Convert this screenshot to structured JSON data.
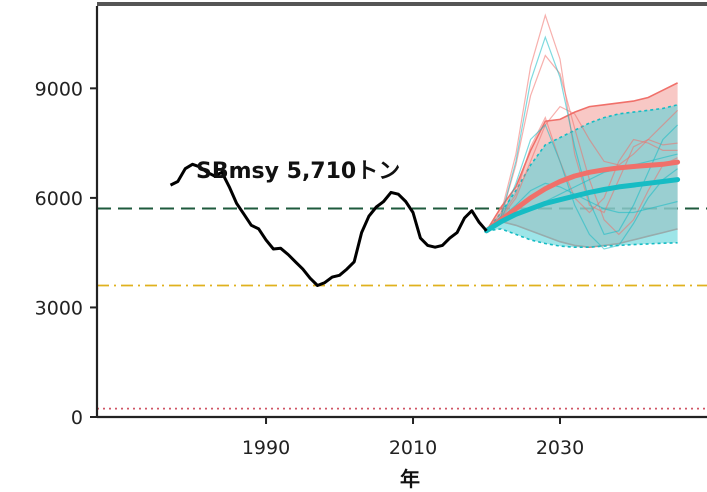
{
  "chart_data": {
    "type": "line",
    "title": "",
    "xlabel": "年",
    "ylabel": "",
    "xlim": [
      1967,
      2050
    ],
    "ylim": [
      0,
      11200
    ],
    "x_ticks": [
      1990,
      2010,
      2030
    ],
    "y_ticks": [
      0,
      3000,
      6000,
      9000
    ],
    "annotation": "SBmsy 5,710トン",
    "colors": {
      "observed": "#000000",
      "scenario_red": "#f0706a",
      "scenario_red_band": "#f5aaa6",
      "scenario_teal": "#16bcc4",
      "scenario_teal_band": "#5cd3d8",
      "sbmsy_line": "#1e5a3c",
      "limit_line": "#e0b11e",
      "ban_line": "#d05565"
    },
    "reference_lines": [
      {
        "y": 5710,
        "style": "dashed",
        "color_key": "sbmsy_line"
      },
      {
        "y": 3600,
        "style": "dash-dot",
        "color_key": "limit_line"
      },
      {
        "y": 230,
        "style": "dotted",
        "color_key": "ban_line"
      }
    ],
    "observed": {
      "x": [
        1977,
        1978,
        1979,
        1980,
        1981,
        1982,
        1983,
        1984,
        1985,
        1986,
        1987,
        1988,
        1989,
        1990,
        1991,
        1992,
        1993,
        1994,
        1995,
        1996,
        1997,
        1998,
        1999,
        2000,
        2001,
        2002,
        2003,
        2004,
        2005,
        2006,
        2007,
        2008,
        2009,
        2010,
        2011,
        2012,
        2013,
        2014,
        2015,
        2016,
        2017,
        2018,
        2019,
        2020
      ],
      "y": [
        6350,
        6450,
        6800,
        6920,
        6850,
        6700,
        6600,
        6700,
        6300,
        5850,
        5550,
        5250,
        5150,
        4850,
        4600,
        4620,
        4450,
        4250,
        4050,
        3800,
        3600,
        3680,
        3830,
        3880,
        4050,
        4250,
        5050,
        5500,
        5750,
        5900,
        6150,
        6100,
        5900,
        5600,
        4900,
        4700,
        4650,
        4700,
        4900,
        5050,
        5450,
        5650,
        5330,
        5100
      ]
    },
    "projections": [
      {
        "color_key": "scenario_red",
        "band_color_key": "scenario_red_band",
        "x": [
          2020,
          2022,
          2024,
          2026,
          2028,
          2030,
          2032,
          2034,
          2036,
          2038,
          2040,
          2042,
          2044,
          2046
        ],
        "median": [
          5100,
          5400,
          5700,
          6000,
          6250,
          6450,
          6600,
          6700,
          6770,
          6820,
          6860,
          6890,
          6920,
          6980
        ],
        "upper": [
          5100,
          5750,
          6300,
          7300,
          8100,
          8150,
          8350,
          8500,
          8550,
          8600,
          8650,
          8750,
          8950,
          9150
        ],
        "lower": [
          5100,
          5350,
          5250,
          5100,
          4950,
          4800,
          4700,
          4650,
          4700,
          4750,
          4850,
          4950,
          5050,
          5150
        ],
        "traces": [
          [
            5100,
            5600,
            7200,
            9600,
            11000,
            9800,
            7200,
            5800,
            5600,
            6500,
            7400,
            7600,
            7450,
            7500
          ],
          [
            5100,
            5500,
            6900,
            8800,
            9900,
            9400,
            7900,
            6500,
            5400,
            5000,
            5400,
            6200,
            6900,
            7100
          ],
          [
            5100,
            5450,
            6000,
            7000,
            8000,
            8500,
            8300,
            7600,
            7000,
            6900,
            7200,
            7600,
            8000,
            8400
          ],
          [
            5100,
            5500,
            6100,
            7400,
            8200,
            7000,
            6000,
            5600,
            6000,
            7000,
            7600,
            7500,
            7300,
            7300
          ]
        ]
      },
      {
        "color_key": "scenario_teal",
        "band_color_key": "scenario_teal_band",
        "x": [
          2020,
          2022,
          2024,
          2026,
          2028,
          2030,
          2032,
          2034,
          2036,
          2038,
          2040,
          2042,
          2044,
          2046
        ],
        "median": [
          5100,
          5350,
          5550,
          5700,
          5850,
          5950,
          6050,
          6150,
          6230,
          6300,
          6350,
          6400,
          6450,
          6500
        ],
        "upper": [
          5100,
          5600,
          6200,
          6900,
          7450,
          7650,
          7850,
          8050,
          8200,
          8300,
          8350,
          8400,
          8450,
          8550
        ],
        "lower": [
          5100,
          5150,
          5000,
          4850,
          4750,
          4680,
          4650,
          4650,
          4680,
          4700,
          4720,
          4740,
          4760,
          4770
        ],
        "traces": [
          [
            5100,
            5500,
            7000,
            9200,
            10400,
            9300,
            7400,
            5900,
            5000,
            5100,
            5800,
            6700,
            7600,
            8000
          ],
          [
            5100,
            5400,
            6400,
            7600,
            8000,
            7000,
            5800,
            5000,
            4600,
            4700,
            5300,
            6000,
            6500,
            6800
          ],
          [
            5100,
            5450,
            5800,
            6200,
            6400,
            6300,
            6100,
            5900,
            5700,
            5600,
            5600,
            5700,
            5800,
            5900
          ],
          [
            5100,
            5300,
            5500,
            5700,
            5900,
            6100,
            6300,
            6500,
            6700,
            6800,
            6900,
            7000,
            7100,
            7200
          ]
        ]
      }
    ]
  }
}
